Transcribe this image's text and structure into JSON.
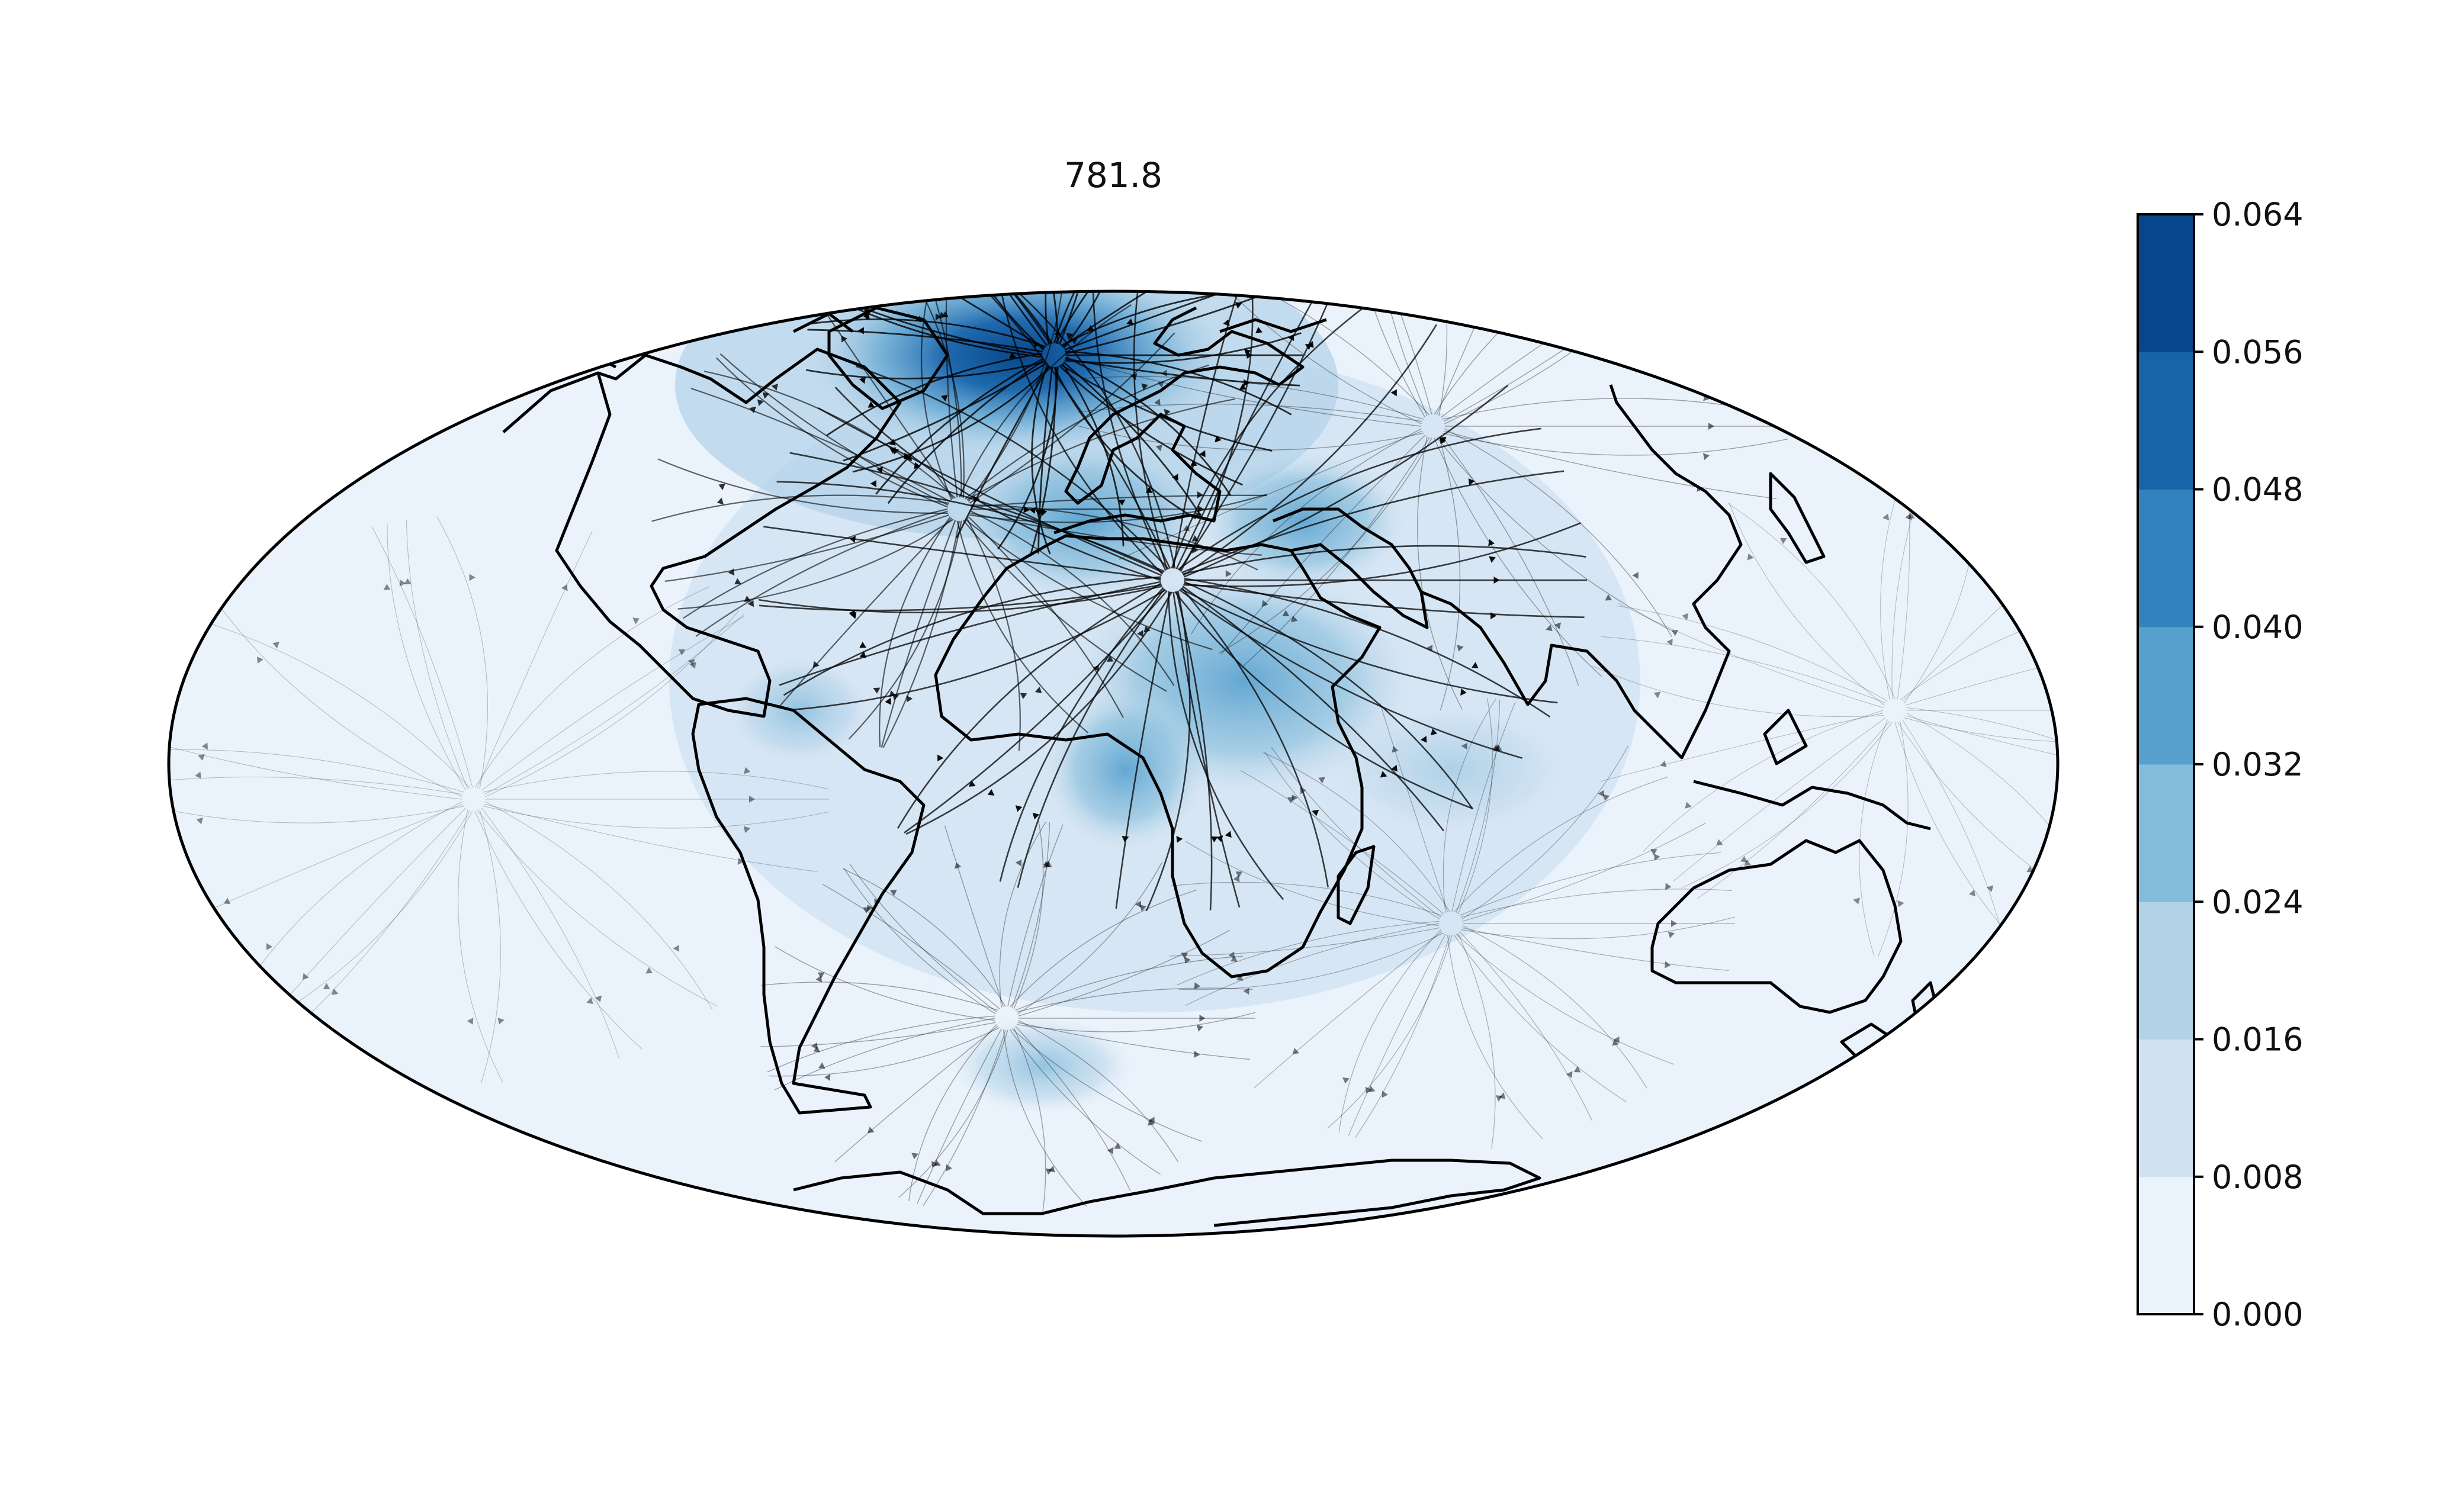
{
  "title": "781.8",
  "colorbar": {
    "levels": [
      "0.000",
      "0.008",
      "0.016",
      "0.024",
      "0.032",
      "0.040",
      "0.048",
      "0.056",
      "0.064"
    ],
    "colors": [
      "#eaf2fb",
      "#d0e1f2",
      "#b2d2e8",
      "#84bcdb",
      "#57a0ce",
      "#3282be",
      "#1764ab",
      "#08468b"
    ]
  },
  "projection": "mollweide",
  "map_colors": {
    "background": "#eaf2fb",
    "coast": "#000000",
    "streamline": "#000000"
  }
}
